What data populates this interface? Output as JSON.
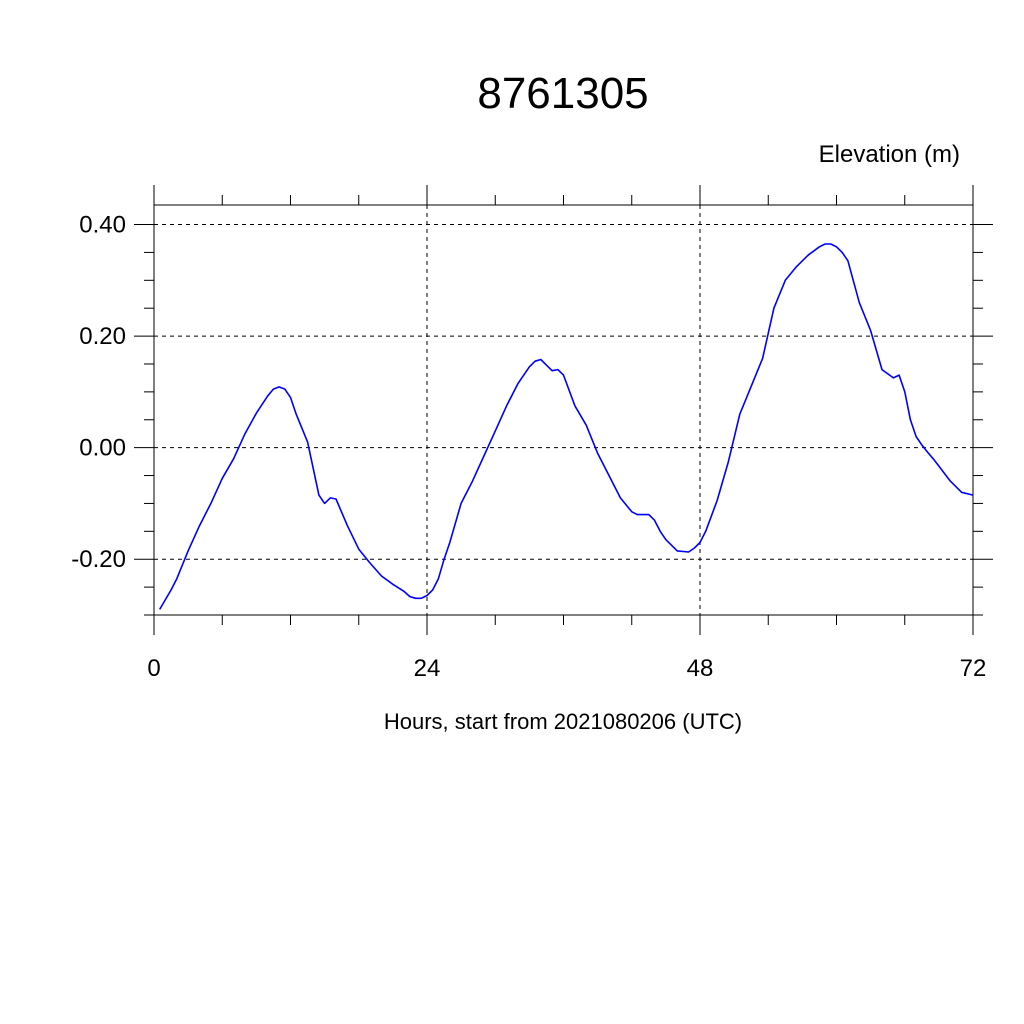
{
  "chart_data": {
    "type": "line",
    "title": "8761305",
    "ylabel": "Elevation (m)",
    "xlabel": "Hours, start from 2021080206 (UTC)",
    "xlim": [
      0,
      72
    ],
    "ylim": [
      -0.3,
      0.435
    ],
    "x_ticks": [
      0,
      24,
      48,
      72
    ],
    "x_tick_labels": [
      "0",
      "24",
      "48",
      "72"
    ],
    "y_ticks": [
      -0.2,
      0.0,
      0.2,
      0.4
    ],
    "y_tick_labels": [
      "-0.20",
      "0.00",
      "0.20",
      "0.40"
    ],
    "grid": "dashed",
    "line_color": "#0000ff",
    "series": [
      {
        "x": [
          0.5,
          1.5,
          2.0,
          3.0,
          4.0,
          5.0,
          6.0,
          7.0,
          8.0,
          9.0,
          10.0,
          10.5,
          11.0,
          11.5,
          12.0,
          12.5,
          13.5,
          14.5,
          15.0,
          15.5,
          16.0,
          17.0,
          18.0,
          19.0,
          20.0,
          21.0,
          22.0,
          22.5,
          23.0,
          23.5,
          24.0,
          24.5,
          25.0,
          25.5,
          26.0,
          27.0,
          28.0,
          29.0,
          30.0,
          31.0,
          32.0,
          33.0,
          33.5,
          34.0,
          34.5,
          35.0,
          35.5,
          36.0,
          37.0,
          38.0,
          39.0,
          40.0,
          41.0,
          42.0,
          42.5,
          43.0,
          43.5,
          44.0,
          44.5,
          45.0,
          46.0,
          47.0,
          47.5,
          48.0,
          48.5,
          49.5,
          50.5,
          51.5,
          52.5,
          53.5,
          54.5,
          55.5,
          56.5,
          57.5,
          58.5,
          59.0,
          59.5,
          60.0,
          60.5,
          61.0,
          62.0,
          63.0,
          64.0,
          65.0,
          65.5,
          66.0,
          66.5,
          67.0,
          67.5,
          68.0,
          68.5,
          69.0,
          70.0,
          71.0,
          72.0
        ],
        "y": [
          -0.29,
          -0.255,
          -0.235,
          -0.185,
          -0.14,
          -0.1,
          -0.055,
          -0.02,
          0.025,
          0.062,
          0.093,
          0.105,
          0.109,
          0.105,
          0.09,
          0.06,
          0.01,
          -0.085,
          -0.1,
          -0.09,
          -0.092,
          -0.14,
          -0.182,
          -0.207,
          -0.23,
          -0.245,
          -0.258,
          -0.267,
          -0.27,
          -0.27,
          -0.265,
          -0.255,
          -0.235,
          -0.2,
          -0.17,
          -0.1,
          -0.06,
          -0.015,
          0.03,
          0.075,
          0.115,
          0.145,
          0.155,
          0.158,
          0.148,
          0.138,
          0.14,
          0.13,
          0.075,
          0.04,
          -0.01,
          -0.05,
          -0.09,
          -0.115,
          -0.12,
          -0.12,
          -0.12,
          -0.13,
          -0.15,
          -0.165,
          -0.185,
          -0.187,
          -0.18,
          -0.17,
          -0.15,
          -0.095,
          -0.025,
          0.06,
          0.11,
          0.16,
          0.25,
          0.3,
          0.325,
          0.345,
          0.36,
          0.365,
          0.365,
          0.36,
          0.35,
          0.335,
          0.26,
          0.21,
          0.14,
          0.125,
          0.13,
          0.1,
          0.05,
          0.02,
          0.005,
          -0.008,
          -0.02,
          -0.033,
          -0.06,
          -0.08,
          -0.085
        ]
      }
    ]
  }
}
